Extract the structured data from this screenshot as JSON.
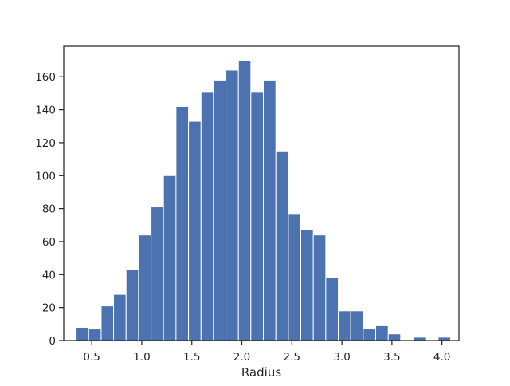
{
  "chart_data": {
    "type": "bar",
    "subtype": "histogram",
    "title": "",
    "xlabel": "Radius",
    "ylabel": "",
    "xlim": [
      0.22,
      4.17
    ],
    "ylim": [
      0,
      178.5
    ],
    "xticks": [
      0.5,
      1.0,
      1.5,
      2.0,
      2.5,
      3.0,
      3.5,
      4.0
    ],
    "xtick_labels": [
      "0.5",
      "1.0",
      "1.5",
      "2.0",
      "2.5",
      "3.0",
      "3.5",
      "4.0"
    ],
    "yticks": [
      0,
      20,
      40,
      60,
      80,
      100,
      120,
      140,
      160
    ],
    "ytick_labels": [
      "0",
      "20",
      "40",
      "60",
      "80",
      "100",
      "120",
      "140",
      "160"
    ],
    "bin_edges": [
      0.344,
      0.469,
      0.594,
      0.718,
      0.843,
      0.968,
      1.093,
      1.217,
      1.342,
      1.467,
      1.592,
      1.716,
      1.841,
      1.966,
      2.09,
      2.215,
      2.34,
      2.465,
      2.589,
      2.714,
      2.839,
      2.964,
      3.088,
      3.213,
      3.338,
      3.463,
      3.587,
      3.712,
      3.837,
      3.962,
      4.086
    ],
    "counts": [
      8,
      7,
      21,
      28,
      43,
      64,
      81,
      100,
      142,
      133,
      151,
      158,
      164,
      170,
      151,
      158,
      115,
      77,
      67,
      64,
      38,
      18,
      18,
      7,
      9,
      4,
      0,
      2,
      0,
      2
    ],
    "bar_color": "#4c72b0",
    "bar_edge_color": "#ffffff",
    "grid": false,
    "legend": "none"
  }
}
